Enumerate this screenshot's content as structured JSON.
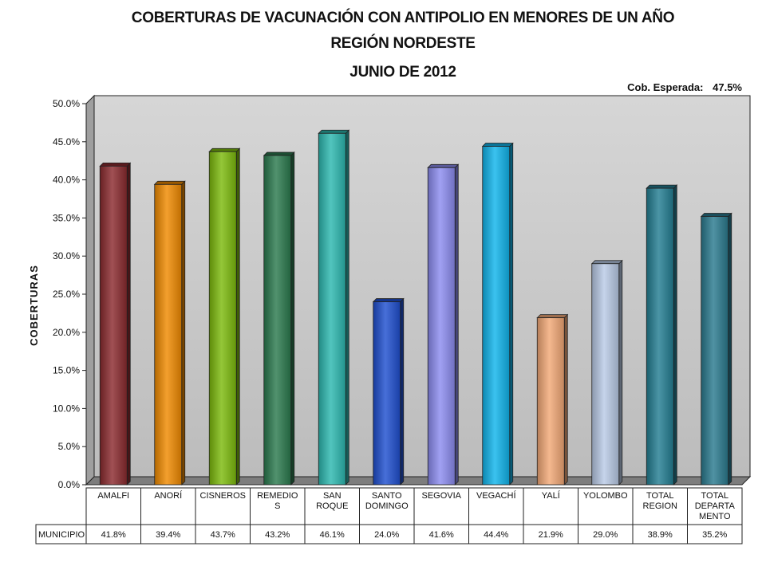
{
  "title_lines": [
    "COBERTURAS DE VACUNACIÓN CON ANTIPOLIO EN MENORES DE UN AÑO",
    "REGIÓN NORDESTE",
    "JUNIO DE 2012"
  ],
  "expected_coverage": {
    "label": "Cob. Esperada:",
    "value": "47.5%"
  },
  "chart_data": {
    "type": "bar",
    "title": "COBERTURAS DE VACUNACIÓN CON ANTIPOLIO EN MENORES DE UN AÑO",
    "ylabel": "COBERTURAS",
    "xlabel": "",
    "ylim": [
      0,
      50
    ],
    "ytick_step": 5,
    "ytick_labels": [
      "0.0%",
      "5.0%",
      "10.0%",
      "15.0%",
      "20.0%",
      "25.0%",
      "30.0%",
      "35.0%",
      "40.0%",
      "45.0%",
      "50.0%"
    ],
    "grid": false,
    "categories": [
      [
        "AMALFI"
      ],
      [
        "ANORÍ"
      ],
      [
        "CISNEROS"
      ],
      [
        "REMEDIO",
        "S"
      ],
      [
        "SAN",
        "ROQUE"
      ],
      [
        "SANTO",
        "DOMINGO"
      ],
      [
        "SEGOVIA"
      ],
      [
        "VEGACHÍ"
      ],
      [
        "YALÍ"
      ],
      [
        "YOLOMBO"
      ],
      [
        "TOTAL",
        "REGION"
      ],
      [
        "TOTAL",
        "DEPARTA",
        "MENTO"
      ]
    ],
    "series": [
      {
        "name": "MUNICIPIO",
        "values": [
          41.8,
          39.4,
          43.7,
          43.2,
          46.1,
          24.0,
          41.6,
          44.4,
          21.9,
          29.0,
          38.9,
          35.2
        ],
        "value_labels": [
          "41.8%",
          "39.4%",
          "43.7%",
          "43.2%",
          "46.1%",
          "24.0%",
          "41.6%",
          "44.4%",
          "21.9%",
          "29.0%",
          "38.9%",
          "35.2%"
        ]
      }
    ],
    "bar_colors": [
      "#8b2a2e",
      "#f08a00",
      "#7dbb0c",
      "#2b7a4e",
      "#2cb8b0",
      "#1f4fd0",
      "#8c8cf0",
      "#10b4ec",
      "#f2a876",
      "#b9cbe6",
      "#237e92",
      "#2a7a8f"
    ],
    "data_table": true,
    "plot_background": "#c8c8c8"
  }
}
